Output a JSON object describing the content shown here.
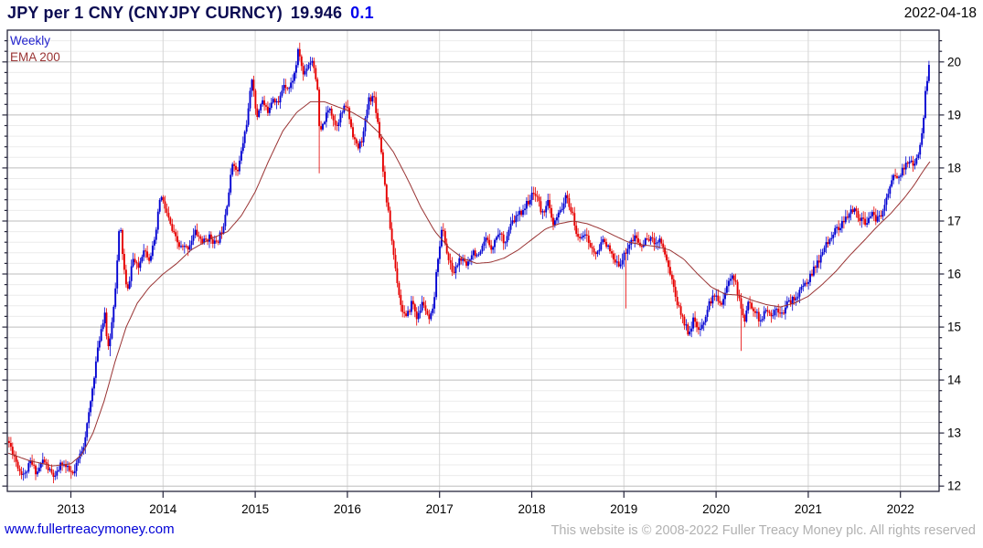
{
  "header": {
    "title": "JPY per 1 CNY (CNYJPY CURNCY)",
    "last_price": "19.946",
    "change": "0.1",
    "date": "2022-04-18"
  },
  "legend": {
    "timeframe": "Weekly",
    "overlay": "EMA 200"
  },
  "footer": {
    "link": "www.fullertreacymoney.com",
    "copyright": "This website is © 2008-2022 Fuller Treacy Money plc. All rights reserved"
  },
  "chart_data": {
    "type": "candlestick",
    "title": "JPY per 1 CNY (CNYJPY CURNCY)",
    "last_close": 19.946,
    "change": 0.1,
    "seed": 11,
    "data_start": 2012.31,
    "data_end": 2022.31,
    "x_axis": {
      "scale_start": 2012.31,
      "scale_end": 2022.42,
      "ticks": [
        "2013",
        "2014",
        "2015",
        "2016",
        "2017",
        "2018",
        "2019",
        "2020",
        "2021",
        "2022"
      ]
    },
    "y_axis": {
      "min": 11.9,
      "max": 20.6,
      "major_ticks": [
        12,
        13,
        14,
        15,
        16,
        17,
        18,
        19,
        20
      ],
      "minor_step": 0.2,
      "side": "right"
    },
    "grid": {
      "major_color": "#bdbdbd",
      "minor_color": "#ebebeb",
      "vertical_color": "#d6d6d6",
      "border_color": "#26263c"
    },
    "colors": {
      "up": "#0404d2",
      "down": "#e60000",
      "ema": "#993333"
    },
    "wick_events": [
      {
        "x": 2013.42,
        "low": 14.45
      },
      {
        "x": 2015.7,
        "low": 17.9
      },
      {
        "x": 2019.02,
        "low": 15.35
      },
      {
        "x": 2020.28,
        "low": 14.55
      }
    ],
    "series": [
      {
        "name": "CNYJPY weekly close (keypoints)",
        "style": "ohlc-candles",
        "keypoints": [
          [
            2012.32,
            12.85
          ],
          [
            2012.38,
            12.6
          ],
          [
            2012.44,
            12.3
          ],
          [
            2012.5,
            12.2
          ],
          [
            2012.56,
            12.45
          ],
          [
            2012.63,
            12.25
          ],
          [
            2012.7,
            12.5
          ],
          [
            2012.76,
            12.3
          ],
          [
            2012.83,
            12.15
          ],
          [
            2012.9,
            12.45
          ],
          [
            2012.97,
            12.3
          ],
          [
            2013.03,
            12.2
          ],
          [
            2013.08,
            12.5
          ],
          [
            2013.14,
            12.8
          ],
          [
            2013.2,
            13.4
          ],
          [
            2013.26,
            14.2
          ],
          [
            2013.32,
            14.9
          ],
          [
            2013.37,
            15.3
          ],
          [
            2013.4,
            14.5
          ],
          [
            2013.44,
            15.0
          ],
          [
            2013.49,
            15.9
          ],
          [
            2013.53,
            17.0
          ],
          [
            2013.57,
            16.2
          ],
          [
            2013.61,
            15.6
          ],
          [
            2013.67,
            16.3
          ],
          [
            2013.73,
            16.1
          ],
          [
            2013.79,
            16.5
          ],
          [
            2013.85,
            16.3
          ],
          [
            2013.91,
            16.6
          ],
          [
            2013.97,
            17.5
          ],
          [
            2014.03,
            17.2
          ],
          [
            2014.1,
            16.8
          ],
          [
            2014.18,
            16.5
          ],
          [
            2014.27,
            16.5
          ],
          [
            2014.35,
            16.8
          ],
          [
            2014.43,
            16.6
          ],
          [
            2014.51,
            16.7
          ],
          [
            2014.58,
            16.55
          ],
          [
            2014.65,
            16.9
          ],
          [
            2014.71,
            17.5
          ],
          [
            2014.76,
            18.2
          ],
          [
            2014.8,
            17.85
          ],
          [
            2014.86,
            18.4
          ],
          [
            2014.92,
            19.0
          ],
          [
            2014.97,
            19.8
          ],
          [
            2015.01,
            18.9
          ],
          [
            2015.07,
            19.3
          ],
          [
            2015.13,
            19.05
          ],
          [
            2015.19,
            19.35
          ],
          [
            2015.25,
            19.2
          ],
          [
            2015.31,
            19.6
          ],
          [
            2015.37,
            19.5
          ],
          [
            2015.43,
            19.8
          ],
          [
            2015.47,
            20.25
          ],
          [
            2015.52,
            19.75
          ],
          [
            2015.57,
            19.95
          ],
          [
            2015.62,
            20.05
          ],
          [
            2015.67,
            19.6
          ],
          [
            2015.7,
            18.6
          ],
          [
            2015.75,
            18.9
          ],
          [
            2015.81,
            19.15
          ],
          [
            2015.87,
            18.8
          ],
          [
            2015.93,
            19.0
          ],
          [
            2015.99,
            19.2
          ],
          [
            2016.05,
            18.7
          ],
          [
            2016.11,
            18.35
          ],
          [
            2016.17,
            18.6
          ],
          [
            2016.23,
            19.3
          ],
          [
            2016.29,
            19.35
          ],
          [
            2016.35,
            18.6
          ],
          [
            2016.41,
            17.6
          ],
          [
            2016.47,
            16.8
          ],
          [
            2016.53,
            16.0
          ],
          [
            2016.58,
            15.4
          ],
          [
            2016.64,
            15.15
          ],
          [
            2016.7,
            15.5
          ],
          [
            2016.76,
            15.15
          ],
          [
            2016.82,
            15.5
          ],
          [
            2016.88,
            15.1
          ],
          [
            2016.93,
            15.3
          ],
          [
            2016.98,
            16.3
          ],
          [
            2017.03,
            16.9
          ],
          [
            2017.09,
            16.3
          ],
          [
            2017.15,
            16.0
          ],
          [
            2017.22,
            16.3
          ],
          [
            2017.29,
            16.15
          ],
          [
            2017.36,
            16.45
          ],
          [
            2017.43,
            16.3
          ],
          [
            2017.5,
            16.65
          ],
          [
            2017.57,
            16.5
          ],
          [
            2017.64,
            16.8
          ],
          [
            2017.71,
            16.6
          ],
          [
            2017.78,
            16.95
          ],
          [
            2017.85,
            17.1
          ],
          [
            2017.92,
            17.25
          ],
          [
            2017.99,
            17.45
          ],
          [
            2018.05,
            17.55
          ],
          [
            2018.11,
            17.1
          ],
          [
            2018.17,
            17.4
          ],
          [
            2018.23,
            16.9
          ],
          [
            2018.3,
            17.15
          ],
          [
            2018.37,
            17.45
          ],
          [
            2018.43,
            17.2
          ],
          [
            2018.5,
            16.65
          ],
          [
            2018.57,
            16.8
          ],
          [
            2018.64,
            16.5
          ],
          [
            2018.71,
            16.35
          ],
          [
            2018.78,
            16.7
          ],
          [
            2018.85,
            16.4
          ],
          [
            2018.92,
            16.15
          ],
          [
            2018.99,
            16.3
          ],
          [
            2019.05,
            16.55
          ],
          [
            2019.12,
            16.7
          ],
          [
            2019.19,
            16.5
          ],
          [
            2019.26,
            16.7
          ],
          [
            2019.33,
            16.6
          ],
          [
            2019.4,
            16.65
          ],
          [
            2019.46,
            16.3
          ],
          [
            2019.52,
            15.9
          ],
          [
            2019.58,
            15.45
          ],
          [
            2019.64,
            15.15
          ],
          [
            2019.7,
            14.9
          ],
          [
            2019.76,
            15.15
          ],
          [
            2019.82,
            14.85
          ],
          [
            2019.88,
            15.2
          ],
          [
            2019.94,
            15.5
          ],
          [
            2020.0,
            15.6
          ],
          [
            2020.06,
            15.45
          ],
          [
            2020.12,
            15.75
          ],
          [
            2020.18,
            16.05
          ],
          [
            2020.24,
            15.6
          ],
          [
            2020.3,
            15.1
          ],
          [
            2020.36,
            15.5
          ],
          [
            2020.42,
            15.3
          ],
          [
            2020.48,
            15.1
          ],
          [
            2020.54,
            15.3
          ],
          [
            2020.6,
            15.2
          ],
          [
            2020.66,
            15.35
          ],
          [
            2020.72,
            15.3
          ],
          [
            2020.78,
            15.45
          ],
          [
            2020.86,
            15.55
          ],
          [
            2020.94,
            15.75
          ],
          [
            2021.02,
            15.95
          ],
          [
            2021.1,
            16.2
          ],
          [
            2021.18,
            16.5
          ],
          [
            2021.26,
            16.75
          ],
          [
            2021.34,
            16.9
          ],
          [
            2021.42,
            17.05
          ],
          [
            2021.5,
            17.25
          ],
          [
            2021.56,
            17.05
          ],
          [
            2021.62,
            16.95
          ],
          [
            2021.68,
            17.15
          ],
          [
            2021.74,
            17.0
          ],
          [
            2021.8,
            17.15
          ],
          [
            2021.86,
            17.5
          ],
          [
            2021.92,
            17.85
          ],
          [
            2021.98,
            17.8
          ],
          [
            2022.04,
            18.0
          ],
          [
            2022.1,
            18.15
          ],
          [
            2022.15,
            18.0
          ],
          [
            2022.2,
            18.25
          ],
          [
            2022.24,
            18.7
          ],
          [
            2022.27,
            19.4
          ],
          [
            2022.31,
            19.946
          ]
        ]
      },
      {
        "name": "EMA 200",
        "style": "line",
        "keypoints": [
          [
            2012.32,
            12.62
          ],
          [
            2012.55,
            12.48
          ],
          [
            2012.8,
            12.38
          ],
          [
            2013.0,
            12.42
          ],
          [
            2013.12,
            12.6
          ],
          [
            2013.24,
            13.0
          ],
          [
            2013.36,
            13.6
          ],
          [
            2013.48,
            14.35
          ],
          [
            2013.6,
            15.0
          ],
          [
            2013.72,
            15.45
          ],
          [
            2013.85,
            15.75
          ],
          [
            2014.0,
            16.0
          ],
          [
            2014.15,
            16.2
          ],
          [
            2014.3,
            16.45
          ],
          [
            2014.5,
            16.65
          ],
          [
            2014.7,
            16.8
          ],
          [
            2014.85,
            17.1
          ],
          [
            2015.0,
            17.55
          ],
          [
            2015.15,
            18.15
          ],
          [
            2015.3,
            18.7
          ],
          [
            2015.45,
            19.05
          ],
          [
            2015.6,
            19.25
          ],
          [
            2015.75,
            19.25
          ],
          [
            2015.9,
            19.15
          ],
          [
            2016.05,
            19.05
          ],
          [
            2016.2,
            18.9
          ],
          [
            2016.35,
            18.65
          ],
          [
            2016.5,
            18.3
          ],
          [
            2016.65,
            17.8
          ],
          [
            2016.8,
            17.25
          ],
          [
            2016.95,
            16.8
          ],
          [
            2017.1,
            16.5
          ],
          [
            2017.25,
            16.3
          ],
          [
            2017.4,
            16.2
          ],
          [
            2017.55,
            16.22
          ],
          [
            2017.7,
            16.3
          ],
          [
            2017.85,
            16.45
          ],
          [
            2018.0,
            16.65
          ],
          [
            2018.15,
            16.85
          ],
          [
            2018.3,
            16.95
          ],
          [
            2018.45,
            17.0
          ],
          [
            2018.6,
            16.95
          ],
          [
            2018.75,
            16.85
          ],
          [
            2018.9,
            16.72
          ],
          [
            2019.05,
            16.6
          ],
          [
            2019.2,
            16.55
          ],
          [
            2019.35,
            16.52
          ],
          [
            2019.5,
            16.45
          ],
          [
            2019.65,
            16.28
          ],
          [
            2019.8,
            16.0
          ],
          [
            2019.95,
            15.75
          ],
          [
            2020.1,
            15.62
          ],
          [
            2020.25,
            15.6
          ],
          [
            2020.4,
            15.5
          ],
          [
            2020.55,
            15.42
          ],
          [
            2020.7,
            15.38
          ],
          [
            2020.85,
            15.45
          ],
          [
            2021.0,
            15.58
          ],
          [
            2021.15,
            15.8
          ],
          [
            2021.3,
            16.05
          ],
          [
            2021.45,
            16.35
          ],
          [
            2021.6,
            16.62
          ],
          [
            2021.75,
            16.9
          ],
          [
            2021.9,
            17.15
          ],
          [
            2022.05,
            17.45
          ],
          [
            2022.15,
            17.68
          ],
          [
            2022.25,
            17.95
          ],
          [
            2022.32,
            18.12
          ]
        ]
      }
    ]
  }
}
